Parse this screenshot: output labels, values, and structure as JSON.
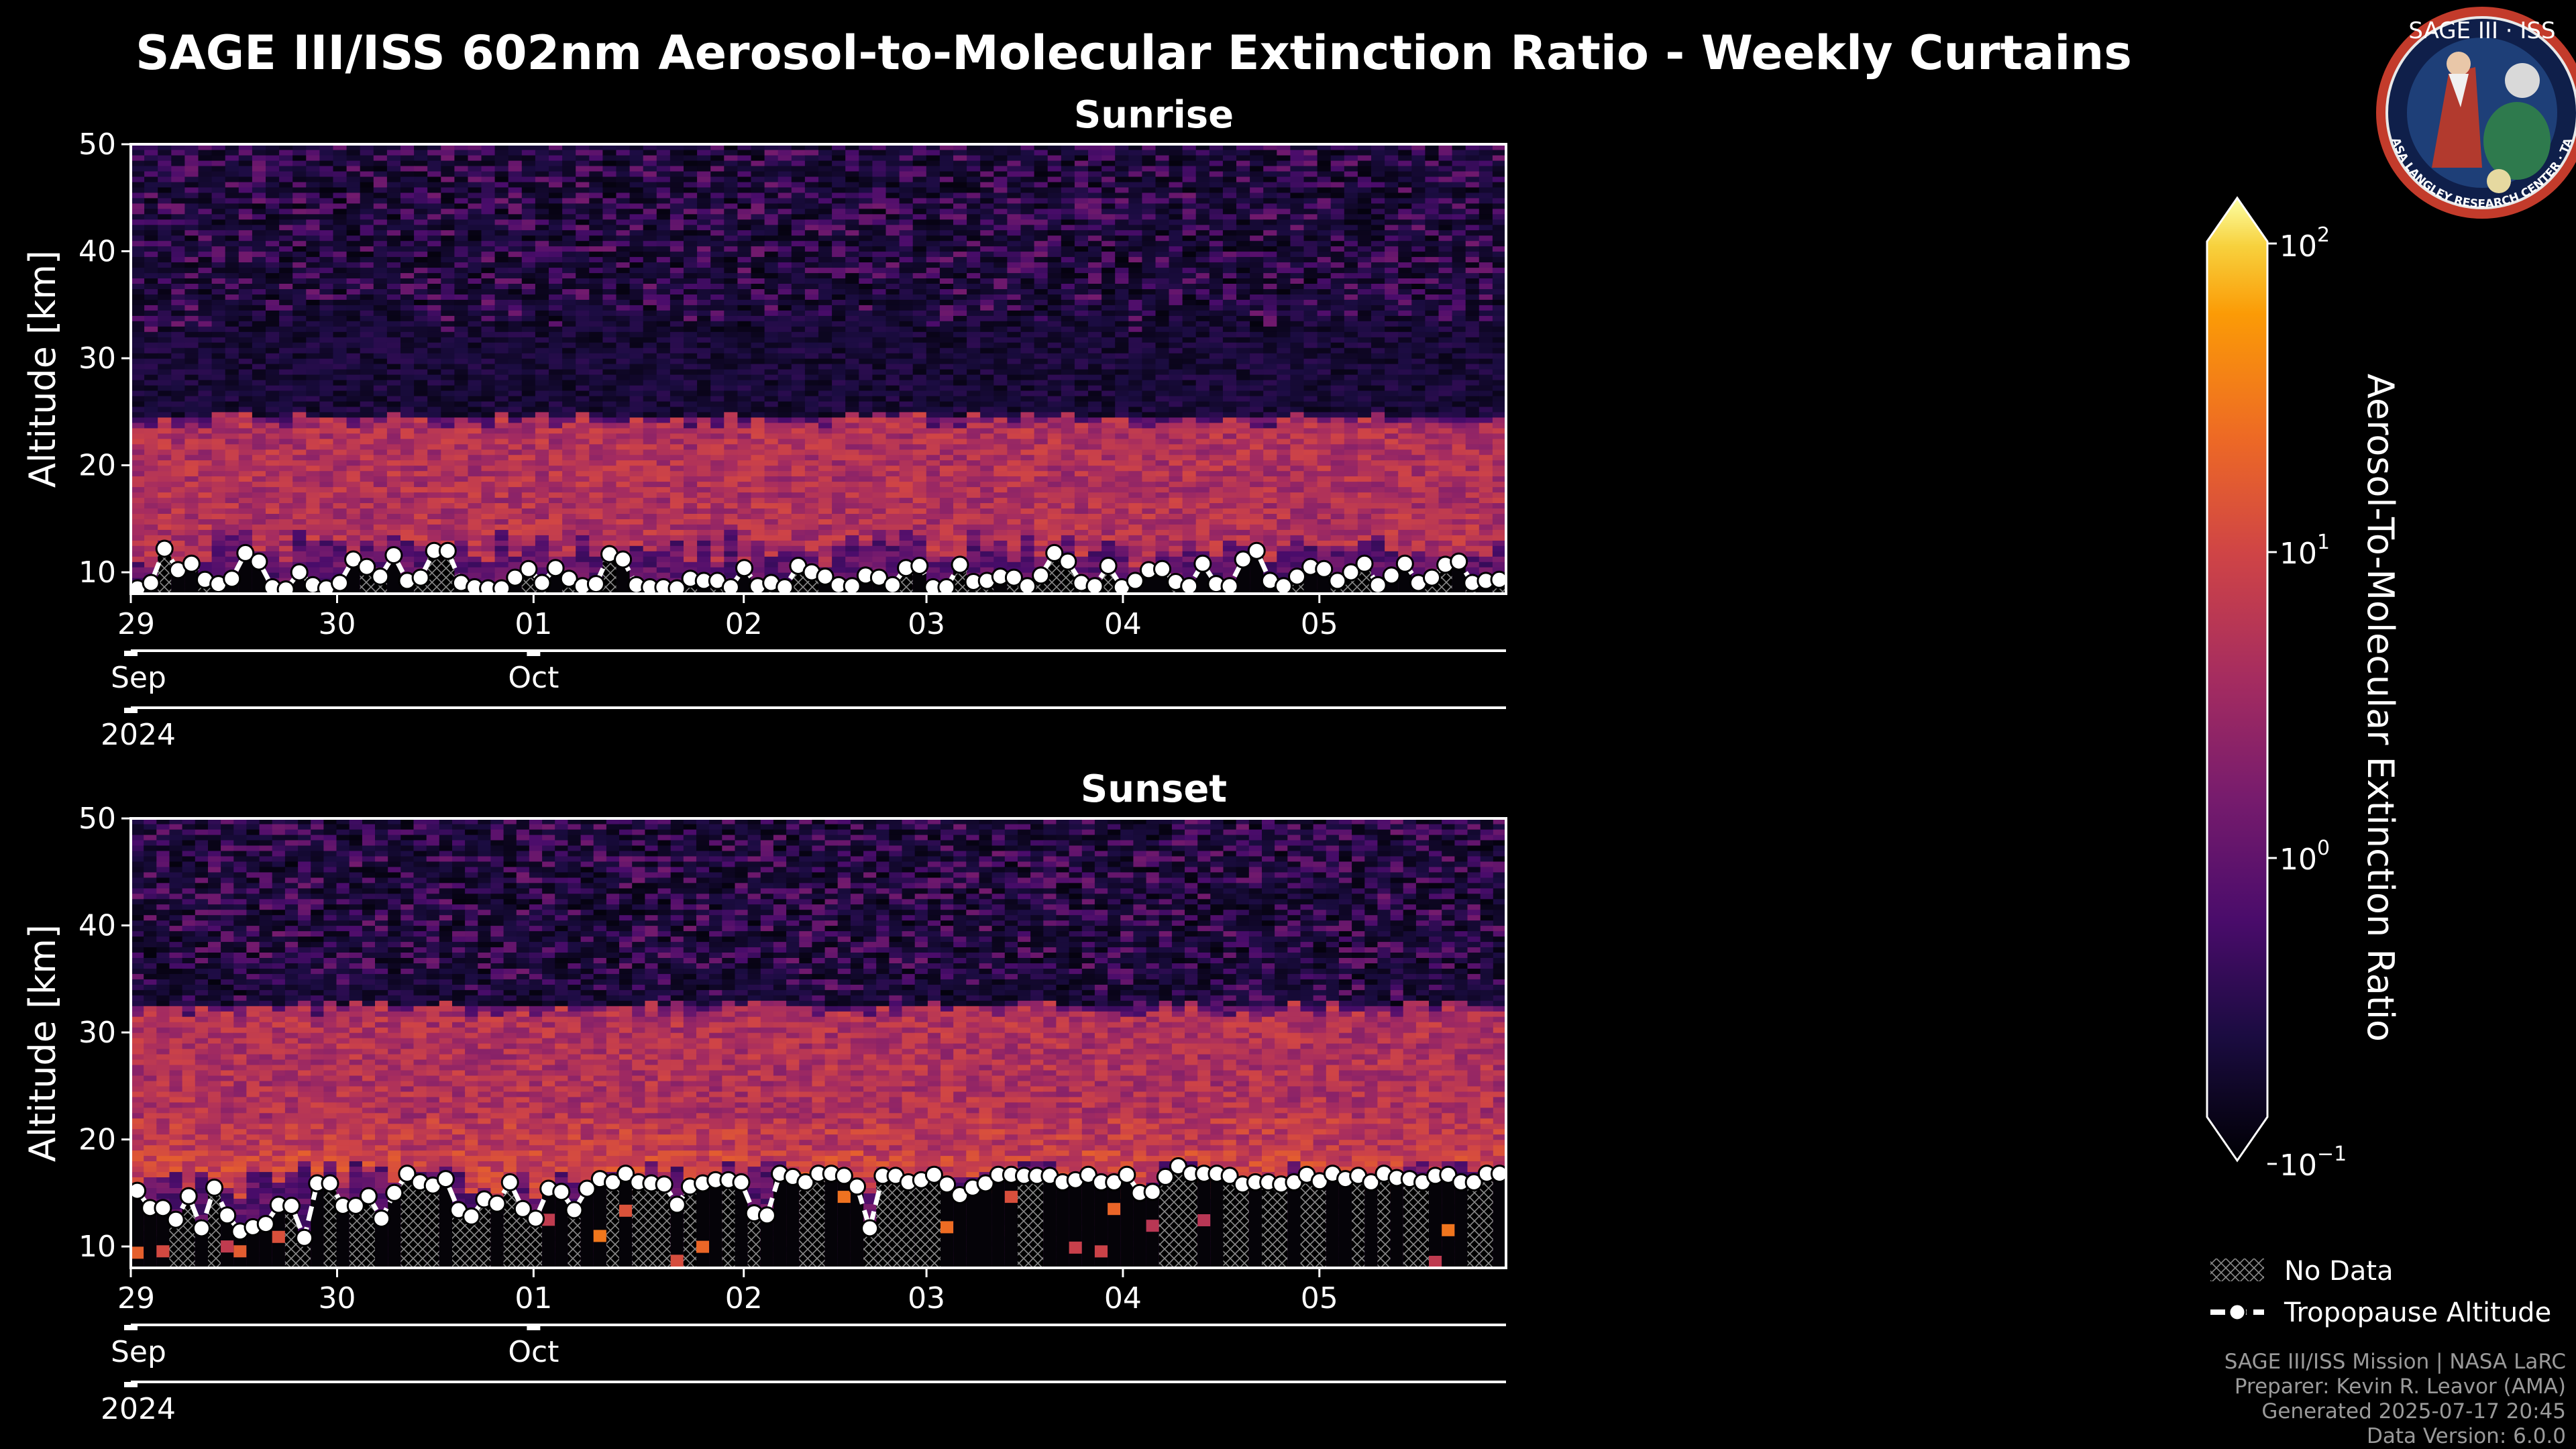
{
  "title": "SAGE III/ISS 602nm Aerosol-to-Molecular Extinction Ratio - Weekly Curtains",
  "logo": {
    "text": "SAGE III · ISS",
    "ring_text": "BALL · NASA LANGLEY RESEARCH CENTER · TAS-I · ESA"
  },
  "colorbar": {
    "label": "Aerosol-To-Molecular Extinction Ratio",
    "scale": "log",
    "range": [
      0.1,
      100
    ],
    "colormap": "inferno",
    "ticks": [
      {
        "base": "10",
        "exp": "2"
      },
      {
        "base": "10",
        "exp": "1"
      },
      {
        "base": "10",
        "exp": "0"
      },
      {
        "base": "10",
        "exp": "−1"
      }
    ]
  },
  "legend": {
    "no_data": "No Data",
    "tropopause": "Tropopause Altitude"
  },
  "footer": {
    "line1": "SAGE III/ISS Mission | NASA LaRC",
    "line2": "Preparer: Kevin R. Leavor (AMA)",
    "line3": "Generated 2025-07-17 20:45",
    "line4": "Data Version: 6.0.0"
  },
  "chart_data": [
    {
      "type": "heatmap",
      "title": "Sunrise",
      "ylabel": "Altitude [km]",
      "ylim": [
        8,
        50
      ],
      "yticks": [
        "10",
        "20",
        "30",
        "40",
        "50"
      ],
      "xticks": [
        "29",
        "30",
        "01",
        "02",
        "03",
        "04",
        "05"
      ],
      "months": [
        "Sep",
        "Oct"
      ],
      "year": "2024",
      "aerosol_layer_km": [
        12,
        24
      ],
      "tropopause_km": [
        8.5,
        9.0,
        12.2,
        10.2,
        10.8,
        9.3,
        8.9,
        9.4,
        11.8,
        11.0,
        8.6,
        8.4,
        10.0,
        8.8,
        8.5,
        9.0,
        11.2,
        10.5,
        9.6,
        11.6,
        9.2,
        9.5,
        12.0,
        12.0,
        9.0,
        8.6,
        8.5,
        8.5,
        9.5,
        10.3,
        9.0,
        10.4,
        9.4,
        8.7,
        8.9,
        11.7,
        11.2,
        8.8,
        8.6,
        8.6,
        8.5,
        9.4,
        9.2,
        9.2,
        8.6,
        10.4,
        8.7,
        9.0,
        8.6,
        10.6,
        10.0,
        9.6,
        8.8,
        8.7,
        9.7,
        9.5,
        8.8,
        10.4,
        10.6,
        8.6,
        8.6,
        10.7,
        9.1,
        9.2,
        9.6,
        9.5,
        8.7,
        9.7,
        11.8,
        11.0,
        9.0,
        8.7,
        10.6,
        8.6,
        9.2,
        10.2,
        10.3,
        9.1,
        8.7,
        10.8,
        8.9,
        8.7,
        11.2,
        12.0,
        9.2,
        8.7,
        9.6,
        10.5,
        10.3,
        9.2,
        10.0,
        10.8,
        8.8,
        9.7,
        10.8,
        9.0,
        9.5,
        10.7,
        11.0,
        9.0,
        9.2,
        9.3
      ]
    },
    {
      "type": "heatmap",
      "title": "Sunset",
      "ylabel": "Altitude [km]",
      "ylim": [
        8,
        50
      ],
      "yticks": [
        "10",
        "20",
        "30",
        "40",
        "50"
      ],
      "xticks": [
        "29",
        "30",
        "01",
        "02",
        "03",
        "04",
        "05"
      ],
      "months": [
        "Sep",
        "Oct"
      ],
      "year": "2024",
      "aerosol_layer_km": [
        16,
        32
      ],
      "tropopause_km": [
        15.2,
        13.6,
        13.6,
        12.5,
        14.7,
        11.7,
        15.5,
        12.9,
        11.4,
        11.8,
        12.1,
        13.9,
        13.8,
        10.8,
        15.9,
        15.9,
        13.8,
        13.8,
        14.7,
        12.6,
        15.0,
        16.8,
        16.0,
        15.7,
        16.3,
        13.4,
        12.8,
        14.4,
        14.0,
        16.0,
        13.5,
        12.6,
        15.4,
        15.1,
        13.4,
        15.4,
        16.3,
        16.0,
        16.8,
        16.0,
        15.9,
        15.8,
        13.9,
        15.6,
        15.9,
        16.2,
        16.2,
        16.0,
        13.1,
        12.9,
        16.8,
        16.5,
        16.0,
        16.8,
        16.8,
        16.6,
        15.6,
        11.7,
        16.6,
        16.6,
        16.0,
        16.2,
        16.7,
        15.8,
        14.8,
        15.5,
        15.9,
        16.7,
        16.7,
        16.6,
        16.6,
        16.6,
        16.0,
        16.2,
        16.7,
        16.0,
        16.0,
        16.7,
        15.0,
        15.1,
        16.5,
        17.5,
        16.8,
        16.8,
        16.8,
        16.6,
        15.8,
        16.0,
        16.0,
        15.8,
        16.0,
        16.7,
        16.1,
        16.8,
        16.3,
        16.6,
        16.0,
        16.8,
        16.4,
        16.3,
        16.0,
        16.6,
        16.7,
        16.0,
        16.0,
        16.8,
        16.8
      ]
    }
  ]
}
